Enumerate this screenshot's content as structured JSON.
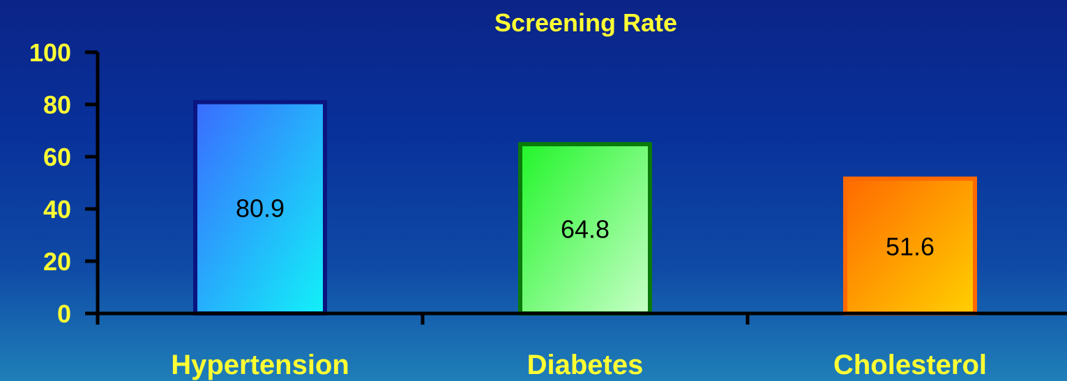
{
  "chart_data": {
    "type": "bar",
    "title": "Screening Rate",
    "xlabel": "",
    "ylabel": "",
    "categories": [
      "Hypertension",
      "Diabetes",
      "Cholesterol"
    ],
    "values": [
      80.9,
      64.8,
      51.6
    ],
    "data_labels": [
      "80.9",
      "64.8",
      "51.6"
    ],
    "ylim": [
      0,
      100
    ],
    "yticks": [
      "0",
      "20",
      "40",
      "60",
      "80",
      "100"
    ],
    "grid": false,
    "legend": "none",
    "colors": {
      "text": "#ffff33",
      "axis": "#000000",
      "bars": [
        {
          "from": "#3a6bff",
          "to": "#12f2f8",
          "border": "#0a1580"
        },
        {
          "from": "#22f52a",
          "to": "#c8ffc8",
          "border": "#0a7a0a"
        },
        {
          "from": "#ff6a00",
          "to": "#ffd000",
          "border": "#ff6a00"
        }
      ]
    }
  }
}
